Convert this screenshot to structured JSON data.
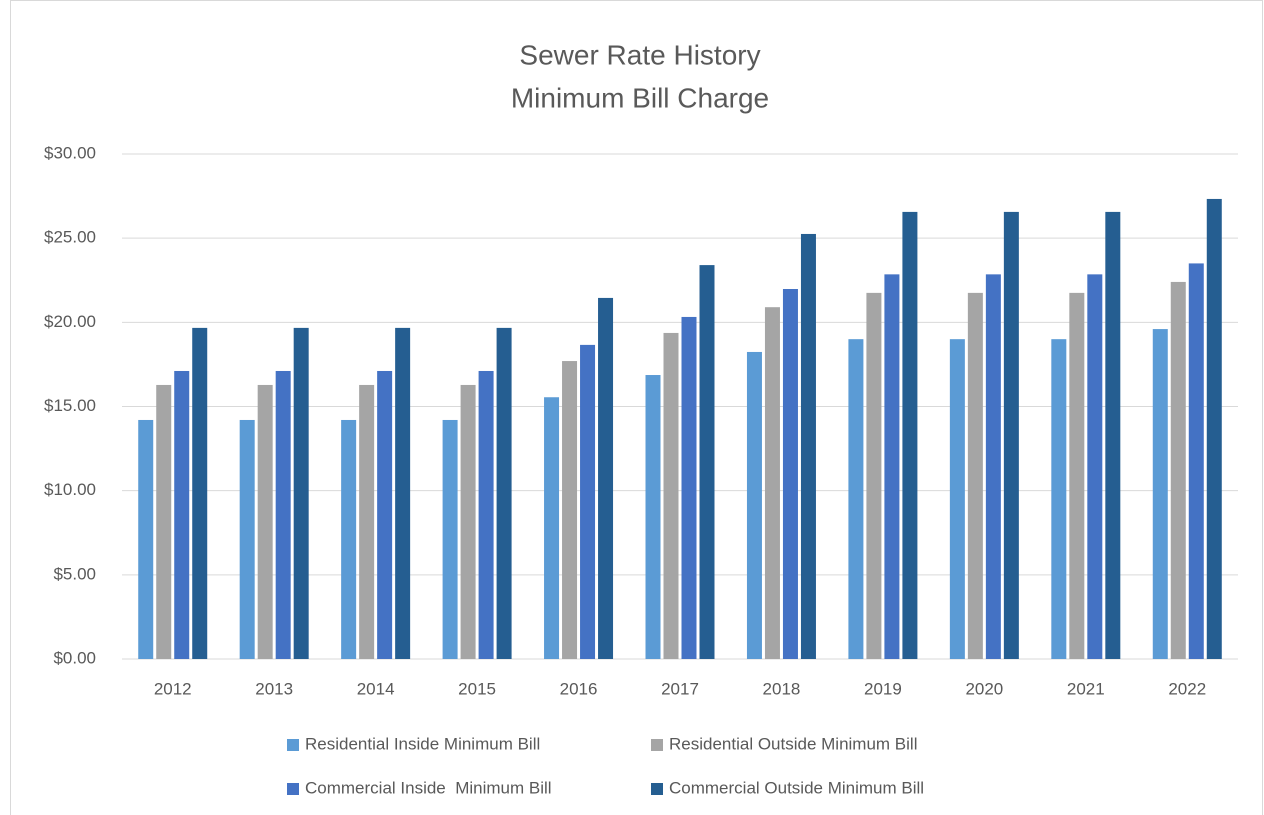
{
  "chart_data": {
    "type": "bar",
    "title": "Sewer Rate History",
    "subtitle": "Minimum Bill Charge",
    "categories": [
      "2012",
      "2013",
      "2014",
      "2015",
      "2016",
      "2017",
      "2018",
      "2019",
      "2020",
      "2021",
      "2022"
    ],
    "series": [
      {
        "name": "Residential Inside Minimum Bill",
        "color": "#5b9bd5",
        "values": [
          14.2,
          14.2,
          14.2,
          14.2,
          15.55,
          16.87,
          18.24,
          19.0,
          19.0,
          19.0,
          19.6
        ]
      },
      {
        "name": "Residential Outside Minimum Bill",
        "color": "#a5a5a5",
        "values": [
          16.28,
          16.28,
          16.28,
          16.28,
          17.7,
          19.37,
          20.9,
          21.75,
          21.75,
          21.75,
          22.4
        ]
      },
      {
        "name": "Commercial Inside  Minimum Bill",
        "color": "#4472c4",
        "values": [
          17.11,
          17.11,
          17.11,
          17.11,
          18.66,
          20.32,
          21.98,
          22.85,
          22.85,
          22.85,
          23.5
        ]
      },
      {
        "name": "Commercial Outside Minimum Bill",
        "color": "#255e91",
        "values": [
          19.67,
          19.67,
          19.67,
          19.67,
          21.45,
          23.4,
          25.25,
          26.56,
          26.56,
          26.56,
          27.33
        ]
      }
    ],
    "ylim": [
      0,
      30
    ],
    "yticks": [
      {
        "value": 0,
        "label": "$0.00"
      },
      {
        "value": 5,
        "label": "$5.00"
      },
      {
        "value": 10,
        "label": "$10.00"
      },
      {
        "value": 15,
        "label": "$15.00"
      },
      {
        "value": 20,
        "label": "$20.00"
      },
      {
        "value": 25,
        "label": "$25.00"
      },
      {
        "value": 30,
        "label": "$30.00"
      }
    ],
    "grid": true,
    "legend": "bottom"
  }
}
